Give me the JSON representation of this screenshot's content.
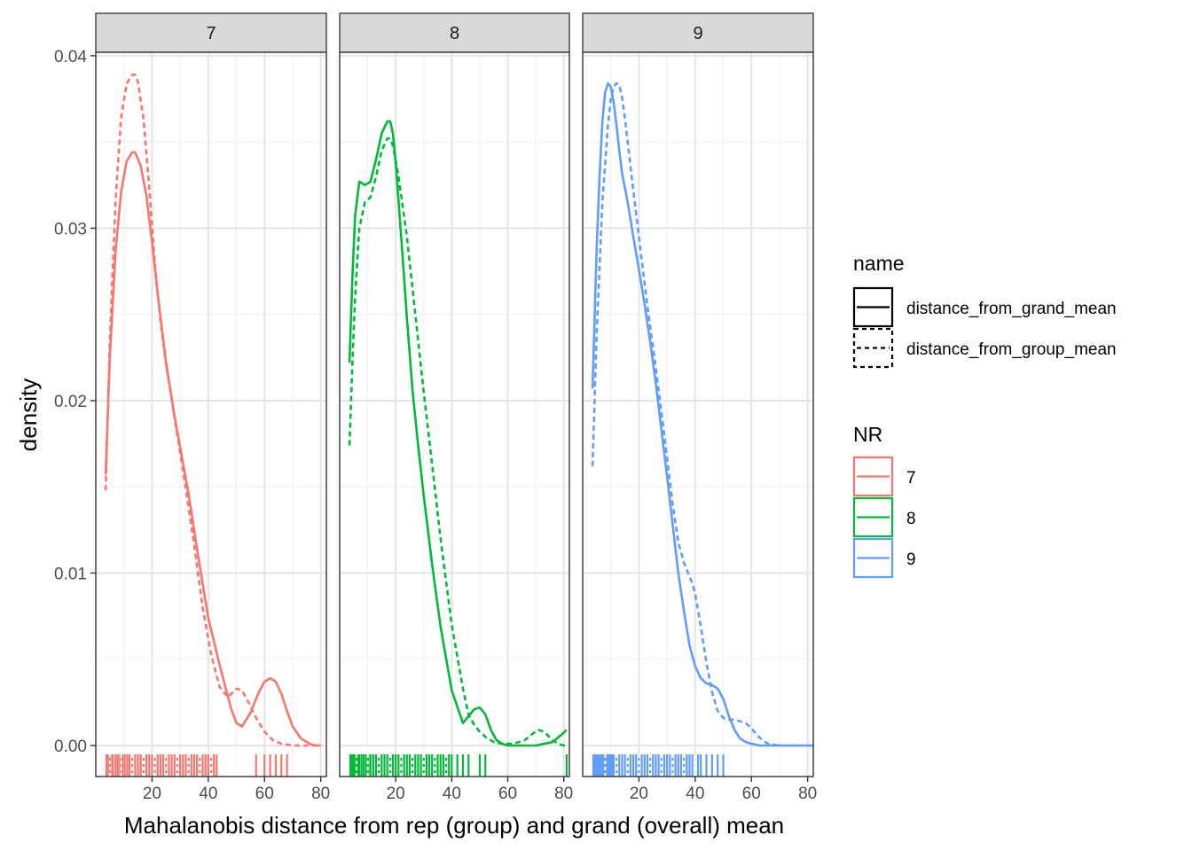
{
  "chart_data": {
    "type": "line",
    "subtype": "faceted density with rug",
    "xlabel": "Mahalanobis distance from rep (group) and grand (overall) mean",
    "ylabel": "density",
    "xlim": [
      0,
      82
    ],
    "ylim": [
      -0.0018,
      0.0402
    ],
    "x_ticks": [
      20,
      40,
      60,
      80
    ],
    "y_ticks": [
      0.0,
      0.01,
      0.02,
      0.03,
      0.04
    ],
    "x_tick_labels": [
      "20",
      "40",
      "60",
      "80"
    ],
    "y_tick_labels": [
      "0.00",
      "0.01",
      "0.02",
      "0.03",
      "0.04"
    ],
    "grid": true,
    "legend_position": "right",
    "legends": {
      "linetype": {
        "title": "name",
        "entries": [
          {
            "label": "distance_from_grand_mean",
            "style": "solid"
          },
          {
            "label": "distance_from_group_mean",
            "style": "dashed"
          }
        ]
      },
      "colour": {
        "title": "NR",
        "entries": [
          {
            "label": "7",
            "color": "#F8766D"
          },
          {
            "label": "8",
            "color": "#00BA38"
          },
          {
            "label": "9",
            "color": "#619CFF"
          }
        ]
      }
    },
    "facets": [
      {
        "label": "7",
        "color": "#F8766D",
        "series": [
          {
            "name": "distance_from_grand_mean",
            "style": "solid",
            "x": [
              3.5,
              5,
              7,
              9,
              11,
              13,
              14,
              16,
              18,
              20,
              22,
              25,
              28,
              30,
              33,
              36,
              40,
              44,
              48,
              50,
              52,
              55,
              58,
              60,
              62,
              64,
              66,
              68,
              70,
              73,
              76,
              78,
              80
            ],
            "y": [
              0.0157,
              0.0225,
              0.0286,
              0.0321,
              0.0339,
              0.0344,
              0.0344,
              0.0336,
              0.0319,
              0.0292,
              0.0262,
              0.0222,
              0.0191,
              0.0173,
              0.0146,
              0.0114,
              0.0074,
              0.0047,
              0.0022,
              0.0013,
              0.0011,
              0.0019,
              0.0031,
              0.0037,
              0.0039,
              0.0037,
              0.003,
              0.002,
              0.0011,
              0.0004,
              0.0001,
              0.0,
              0.0
            ]
          },
          {
            "name": "distance_from_group_mean",
            "style": "dashed",
            "x": [
              3.5,
              5,
              7,
              9,
              11,
              13,
              14,
              15,
              17,
              19,
              21,
              23,
              25,
              28,
              30,
              32,
              35,
              38,
              41,
              44,
              47,
              50,
              52,
              54,
              57,
              60,
              63,
              66,
              70,
              75,
              80
            ],
            "y": [
              0.0148,
              0.0235,
              0.0315,
              0.0364,
              0.0384,
              0.0389,
              0.0389,
              0.0385,
              0.0363,
              0.0324,
              0.028,
              0.0246,
              0.0221,
              0.019,
              0.017,
              0.0149,
              0.0116,
              0.008,
              0.0053,
              0.0034,
              0.0028,
              0.0033,
              0.0032,
              0.0026,
              0.0016,
              0.0008,
              0.0003,
              0.0001,
              0.0,
              0.0,
              0.0
            ]
          }
        ],
        "rug": {
          "solid": [
            3.8,
            4.5,
            5.2,
            6,
            7,
            7.8,
            8.6,
            9.5,
            10.3,
            11.2,
            12,
            13,
            14,
            15,
            16,
            17,
            18,
            19,
            20,
            21,
            22,
            23,
            24,
            25,
            26,
            27,
            28,
            29,
            30,
            31,
            32,
            33,
            34,
            35,
            36,
            37,
            38,
            39,
            40,
            41,
            42,
            43,
            57,
            60,
            62,
            64,
            66,
            68
          ],
          "dashed": [
            5,
            9,
            13,
            17,
            21,
            25,
            29,
            33,
            37,
            41,
            50,
            52
          ]
        }
      },
      {
        "label": "8",
        "color": "#00BA38",
        "series": [
          {
            "name": "distance_from_grand_mean",
            "style": "solid",
            "x": [
              3.5,
              4.5,
              5.5,
              7,
              9,
              11,
              13,
              15,
              17,
              18,
              19,
              20,
              22,
              24,
              26,
              28,
              30,
              33,
              36,
              40,
              44,
              48,
              50,
              52,
              54,
              56,
              58,
              60,
              63,
              66,
              70,
              73,
              76,
              79,
              81
            ],
            "y": [
              0.0222,
              0.027,
              0.0307,
              0.0327,
              0.0325,
              0.0327,
              0.034,
              0.0355,
              0.0362,
              0.0362,
              0.0355,
              0.0338,
              0.0294,
              0.0248,
              0.0206,
              0.0174,
              0.0145,
              0.0105,
              0.0069,
              0.0032,
              0.0013,
              0.0021,
              0.0022,
              0.0018,
              0.0009,
              0.0003,
              0.0001,
              0.0,
              0.0,
              0.0,
              0.0,
              0.0001,
              0.0002,
              0.0006,
              0.0009
            ]
          },
          {
            "name": "distance_from_group_mean",
            "style": "dashed",
            "x": [
              3.5,
              4.5,
              5.5,
              7,
              9,
              11,
              13,
              15,
              17,
              18,
              19,
              21,
              24,
              27,
              30,
              33,
              36,
              40,
              44,
              46,
              48,
              50,
              52,
              55,
              58,
              62,
              66,
              69,
              71,
              73,
              76,
              78,
              80,
              81
            ],
            "y": [
              0.0174,
              0.022,
              0.026,
              0.03,
              0.0315,
              0.0318,
              0.033,
              0.0345,
              0.0352,
              0.0352,
              0.0348,
              0.033,
              0.0295,
              0.025,
              0.0205,
              0.0163,
              0.012,
              0.007,
              0.0033,
              0.0018,
              0.0012,
              0.0008,
              0.0005,
              0.0002,
              0.0001,
              0.0001,
              0.0003,
              0.0007,
              0.0009,
              0.0008,
              0.0003,
              0.0001,
              0.0,
              0.0
            ]
          }
        ],
        "rug": {
          "solid": [
            3.8,
            4.4,
            5,
            5.6,
            6.3,
            7,
            7.8,
            8.6,
            9.4,
            10.2,
            11,
            12,
            13,
            14,
            15,
            16,
            17,
            18,
            19,
            20,
            21,
            22,
            23,
            24,
            25,
            26,
            27,
            28,
            29,
            30,
            31,
            32,
            33,
            34,
            35,
            36,
            37,
            38,
            39,
            40,
            42,
            44,
            46,
            50,
            52,
            81
          ],
          "dashed": [
            6,
            10,
            14,
            18,
            22,
            26,
            30,
            34,
            38,
            41,
            45,
            71
          ]
        }
      },
      {
        "label": "9",
        "color": "#619CFF",
        "series": [
          {
            "name": "distance_from_grand_mean",
            "style": "solid",
            "x": [
              3.5,
              5,
              6,
              7,
              8,
              9,
              10,
              11,
              12,
              13,
              14,
              16,
              18,
              20,
              22,
              24,
              26,
              28,
              30,
              32,
              34,
              36,
              38,
              40,
              42,
              44,
              46,
              48,
              50,
              52,
              54,
              56,
              58,
              60,
              63,
              66,
              70,
              75,
              80,
              82
            ],
            "y": [
              0.0207,
              0.029,
              0.033,
              0.0362,
              0.0379,
              0.0384,
              0.0382,
              0.0373,
              0.036,
              0.0345,
              0.0332,
              0.0315,
              0.0295,
              0.0276,
              0.0256,
              0.0234,
              0.021,
              0.0183,
              0.0156,
              0.0128,
              0.01,
              0.0078,
              0.0058,
              0.0046,
              0.0039,
              0.0036,
              0.0035,
              0.0033,
              0.0027,
              0.0017,
              0.0009,
              0.0004,
              0.0002,
              0.0001,
              0.0,
              0.0,
              0.0,
              0.0,
              0.0,
              0.0
            ]
          },
          {
            "name": "distance_from_group_mean",
            "style": "dashed",
            "x": [
              3.5,
              5,
              7,
              9,
              10,
              11,
              12,
              13,
              14,
              15,
              16,
              18,
              20,
              22,
              24,
              26,
              28,
              30,
              32,
              34,
              36,
              38,
              39,
              40,
              42,
              44,
              46,
              48,
              50,
              52,
              54,
              56,
              58,
              60,
              62,
              64,
              66,
              70,
              75,
              80,
              82
            ],
            "y": [
              0.0162,
              0.024,
              0.0315,
              0.036,
              0.0375,
              0.0382,
              0.0384,
              0.0383,
              0.0376,
              0.0364,
              0.035,
              0.0322,
              0.0295,
              0.0268,
              0.0243,
              0.0219,
              0.0193,
              0.0167,
              0.014,
              0.0118,
              0.0106,
              0.0098,
              0.0094,
              0.0088,
              0.0069,
              0.0048,
              0.0031,
              0.002,
              0.0016,
              0.0015,
              0.0015,
              0.0014,
              0.0013,
              0.001,
              0.0006,
              0.0003,
              0.0001,
              0.0,
              0.0,
              0.0,
              0.0
            ]
          }
        ],
        "rug": {
          "solid": [
            3.8,
            4.4,
            5,
            5.6,
            6.2,
            6.8,
            7.4,
            8,
            8.6,
            9.2,
            9.8,
            10.4,
            11,
            12,
            13,
            14,
            15,
            16,
            17,
            18,
            19,
            20,
            21,
            22,
            23,
            24,
            25,
            26,
            27,
            28,
            29,
            30,
            31,
            32,
            33,
            34,
            35,
            36,
            37,
            38,
            39,
            41,
            42,
            44,
            46,
            48,
            50
          ],
          "dashed": [
            8,
            12,
            16,
            20,
            24,
            28,
            32,
            36,
            40,
            47,
            52,
            59
          ]
        }
      }
    ]
  }
}
